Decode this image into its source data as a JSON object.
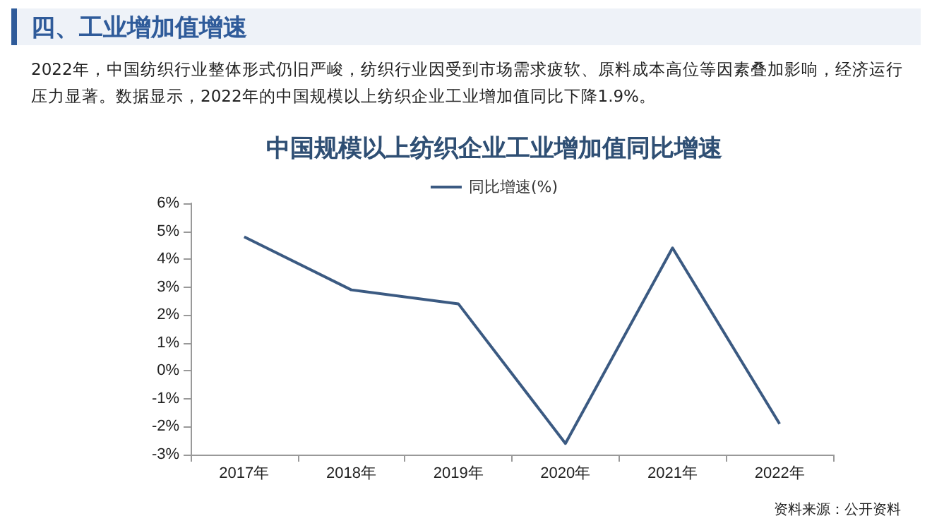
{
  "chart_data": {
    "type": "line",
    "title": "四、工业增加值增速",
    "subtitle": "中国规模以上纺织企业工业增加值同比增速",
    "annotations": [
      "2022年，中国纺织行业整体形式仍旧严峻，纺织行业因受到市场需求疲软、原料成本高位等因素叠加影响，经济运行压力显著。数据显示，2022年的中国规模以上纺织企业工业增加值同比下降1.9%。",
      "资料来源：公开资料"
    ],
    "categories": [
      "2017年",
      "2018年",
      "2019年",
      "2020年",
      "2021年",
      "2022年"
    ],
    "series": [
      {
        "name": "同比增速(%)",
        "color": "#3b5a82",
        "values": [
          4.8,
          2.9,
          2.4,
          -2.6,
          4.4,
          -1.9
        ]
      }
    ],
    "ylim": [
      -3,
      6
    ],
    "yticks": [
      {
        "value": -3,
        "label": "-3%"
      },
      {
        "value": -2,
        "label": "-2%"
      },
      {
        "value": -1,
        "label": "-1%"
      },
      {
        "value": 0,
        "label": "0%"
      },
      {
        "value": 1,
        "label": "1%"
      },
      {
        "value": 2,
        "label": "2%"
      },
      {
        "value": 3,
        "label": "3%"
      },
      {
        "value": 4,
        "label": "4%"
      },
      {
        "value": 5,
        "label": "5%"
      },
      {
        "value": 6,
        "label": "6%"
      }
    ],
    "grid": false,
    "legend": "top",
    "marker": "none",
    "line_style": "solid"
  }
}
